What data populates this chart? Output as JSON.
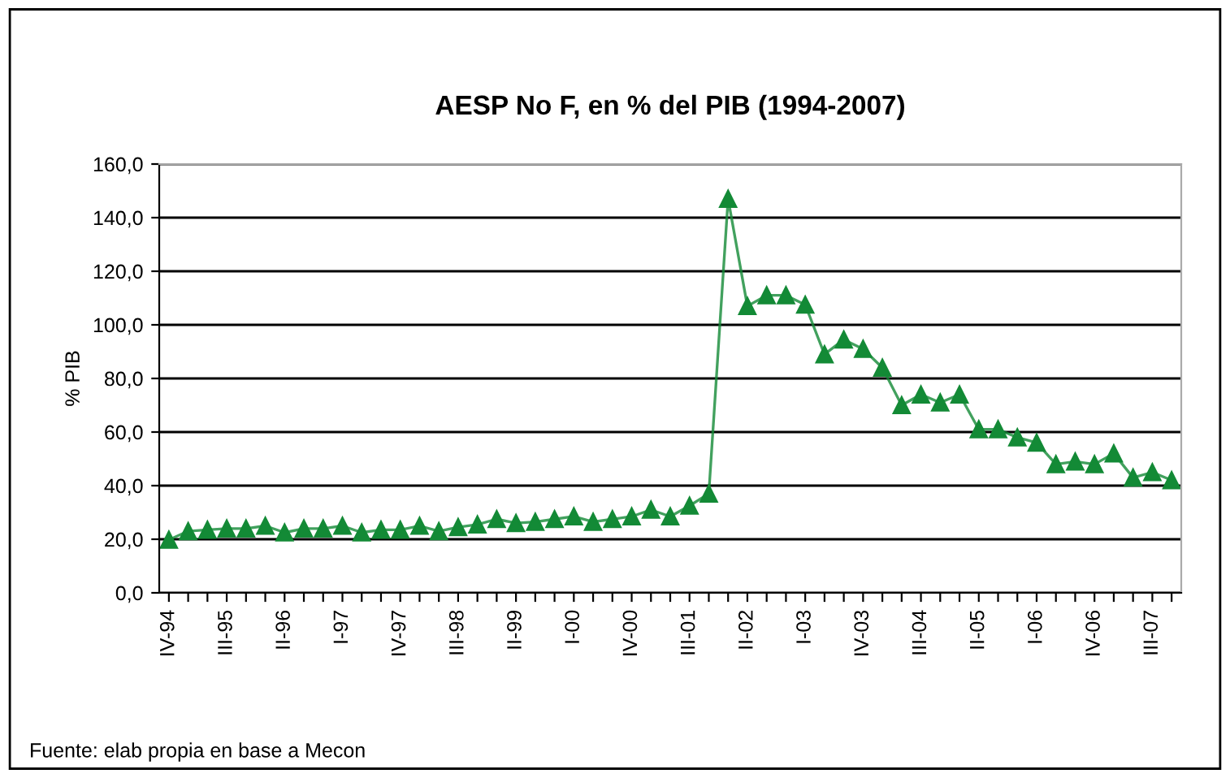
{
  "chart_data": {
    "type": "line",
    "title": "AESP No F, en % del PIB (1994-2007)",
    "ylabel": "% PIB",
    "categories": [
      "IV-94",
      null,
      null,
      "III-95",
      null,
      null,
      "II-96",
      null,
      null,
      "I-97",
      null,
      null,
      "IV-97",
      null,
      null,
      "III-98",
      null,
      null,
      "II-99",
      null,
      null,
      "I-00",
      null,
      null,
      "IV-00",
      null,
      null,
      "III-01",
      null,
      null,
      "II-02",
      null,
      null,
      "I-03",
      null,
      null,
      "IV-03",
      null,
      null,
      "III-04",
      null,
      null,
      "II-05",
      null,
      null,
      "I-06",
      null,
      null,
      "IV-06",
      null,
      null,
      "III-07",
      null
    ],
    "series": [
      {
        "color": "#138a36",
        "values": [
          19.8,
          23,
          23.5,
          24,
          24,
          25,
          22.5,
          24,
          24,
          25,
          22.5,
          23.5,
          23.5,
          25,
          23,
          24.5,
          25.5,
          27.5,
          26,
          26.5,
          27.5,
          28.5,
          26.5,
          27.5,
          28.5,
          31,
          28.5,
          32.5,
          37,
          147,
          107,
          111,
          111,
          107.5,
          89,
          94.5,
          91,
          84,
          70,
          74,
          71,
          74,
          61,
          61,
          58,
          56,
          48,
          49,
          48,
          52,
          43,
          45,
          42
        ]
      }
    ],
    "ylim": [
      0,
      160
    ],
    "yticks": [
      {
        "value": 0,
        "label": "0,0"
      },
      {
        "value": 20,
        "label": "20,0"
      },
      {
        "value": 40,
        "label": "40,0"
      },
      {
        "value": 60,
        "label": "60,0"
      },
      {
        "value": 80,
        "label": "80,0"
      },
      {
        "value": 100,
        "label": "100,0"
      },
      {
        "value": 120,
        "label": "120,0"
      },
      {
        "value": 140,
        "label": "140,0"
      },
      {
        "value": 160,
        "label": "160,0"
      }
    ],
    "grid": "y",
    "marker": "triangle",
    "line_style": "solid",
    "legend": false,
    "annotations": [
      "Fuente: elab propia en base a Mecon"
    ]
  }
}
